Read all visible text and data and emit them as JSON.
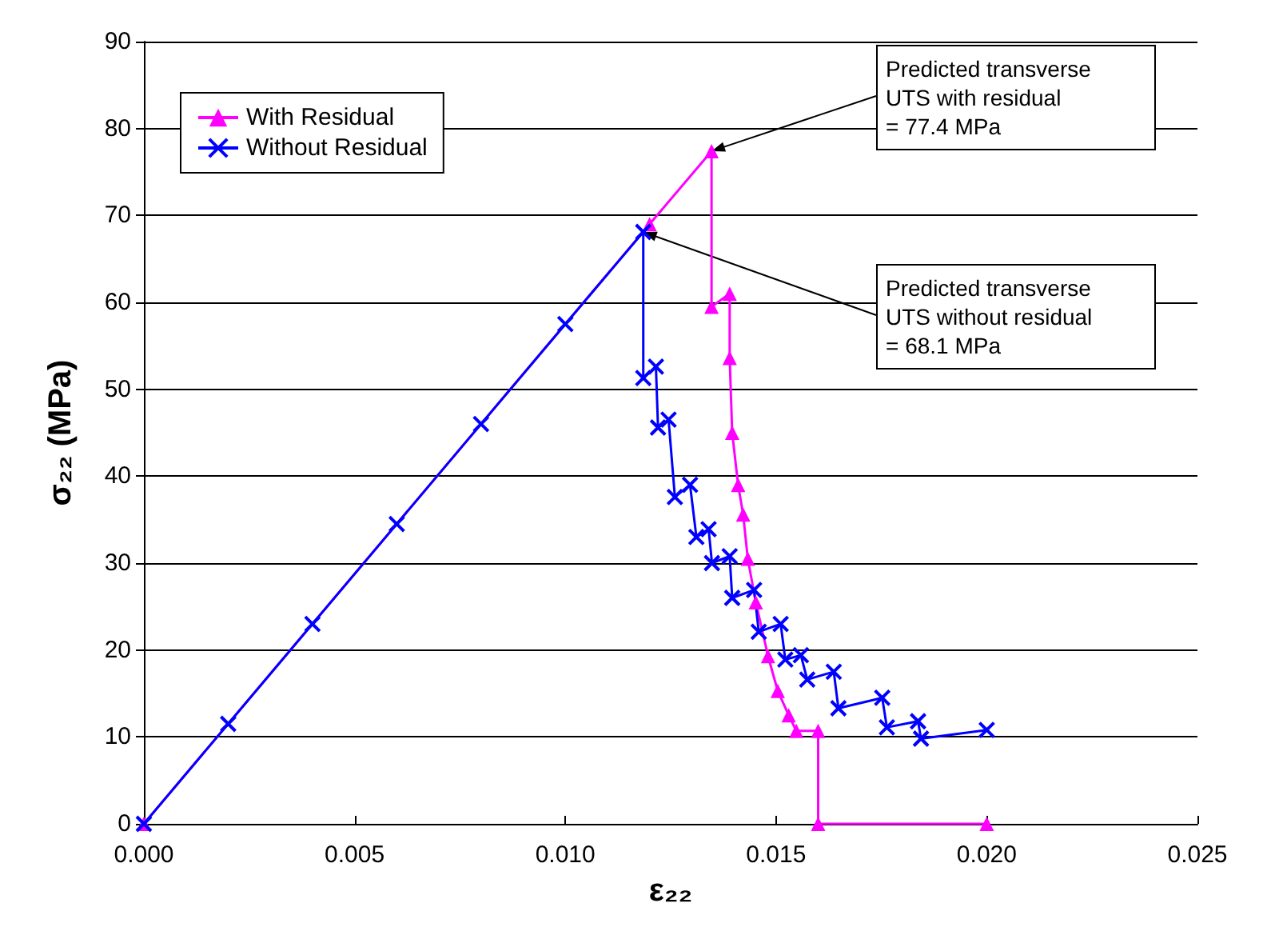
{
  "chart_data": {
    "type": "line",
    "xlabel": "ε₂₂",
    "ylabel": "σ₂₂ (MPa)",
    "xlim": [
      0,
      0.025
    ],
    "xticks": [
      {
        "value": 0,
        "label": "0.000"
      },
      {
        "value": 0.005,
        "label": "0.005"
      },
      {
        "value": 0.01,
        "label": "0.010"
      },
      {
        "value": 0.015,
        "label": "0.015"
      },
      {
        "value": 0.02,
        "label": "0.020"
      },
      {
        "value": 0.025,
        "label": "0.025"
      }
    ],
    "ylim": [
      0,
      90
    ],
    "yticks": [
      0,
      10,
      20,
      30,
      40,
      50,
      60,
      70,
      80,
      90
    ],
    "grid": "y",
    "legend": "top left",
    "series": [
      {
        "name": "With Residual",
        "color": "#ff00ff",
        "marker": "triangle",
        "x": [
          0,
          0.012,
          0.01347,
          0.01347,
          0.0139,
          0.0139,
          0.01396,
          0.0141,
          0.01422,
          0.01433,
          0.01452,
          0.01481,
          0.01504,
          0.0153,
          0.01548,
          0.016,
          0.016,
          0.02
        ],
        "values": [
          0,
          69,
          77.4,
          59.5,
          61,
          53.6,
          45,
          39,
          35.6,
          30.5,
          25.5,
          19.3,
          15.3,
          12.5,
          10.7,
          10.7,
          0,
          0
        ]
      },
      {
        "name": "Without Residual",
        "color": "#0000ff",
        "marker": "cross",
        "x": [
          0,
          0.002,
          0.004,
          0.006,
          0.008,
          0.01,
          0.01185,
          0.01185,
          0.01215,
          0.0122,
          0.01245,
          0.0126,
          0.01296,
          0.01311,
          0.0134,
          0.01348,
          0.0139,
          0.01396,
          0.01448,
          0.01459,
          0.01511,
          0.01522,
          0.01559,
          0.01574,
          0.01637,
          0.01648,
          0.01752,
          0.01763,
          0.01837,
          0.01844,
          0.02
        ],
        "values": [
          0,
          11.5,
          23,
          34.5,
          46,
          57.5,
          68.1,
          51.3,
          52.6,
          45.6,
          46.5,
          37.6,
          39,
          33,
          33.9,
          30,
          30.8,
          26,
          26.9,
          22.1,
          23,
          18.9,
          19.4,
          16.6,
          17.5,
          13.3,
          14.5,
          11.1,
          11.8,
          9.8,
          10.8
        ]
      }
    ],
    "annotations": [
      {
        "text": "Predicted transverse\nUTS with residual\n= 77.4 MPa",
        "x": 0.01347,
        "y": 77.4
      },
      {
        "text": "Predicted transverse\nUTS without residual\n= 68.1 MPa",
        "x": 0.01185,
        "y": 68.1
      }
    ]
  }
}
